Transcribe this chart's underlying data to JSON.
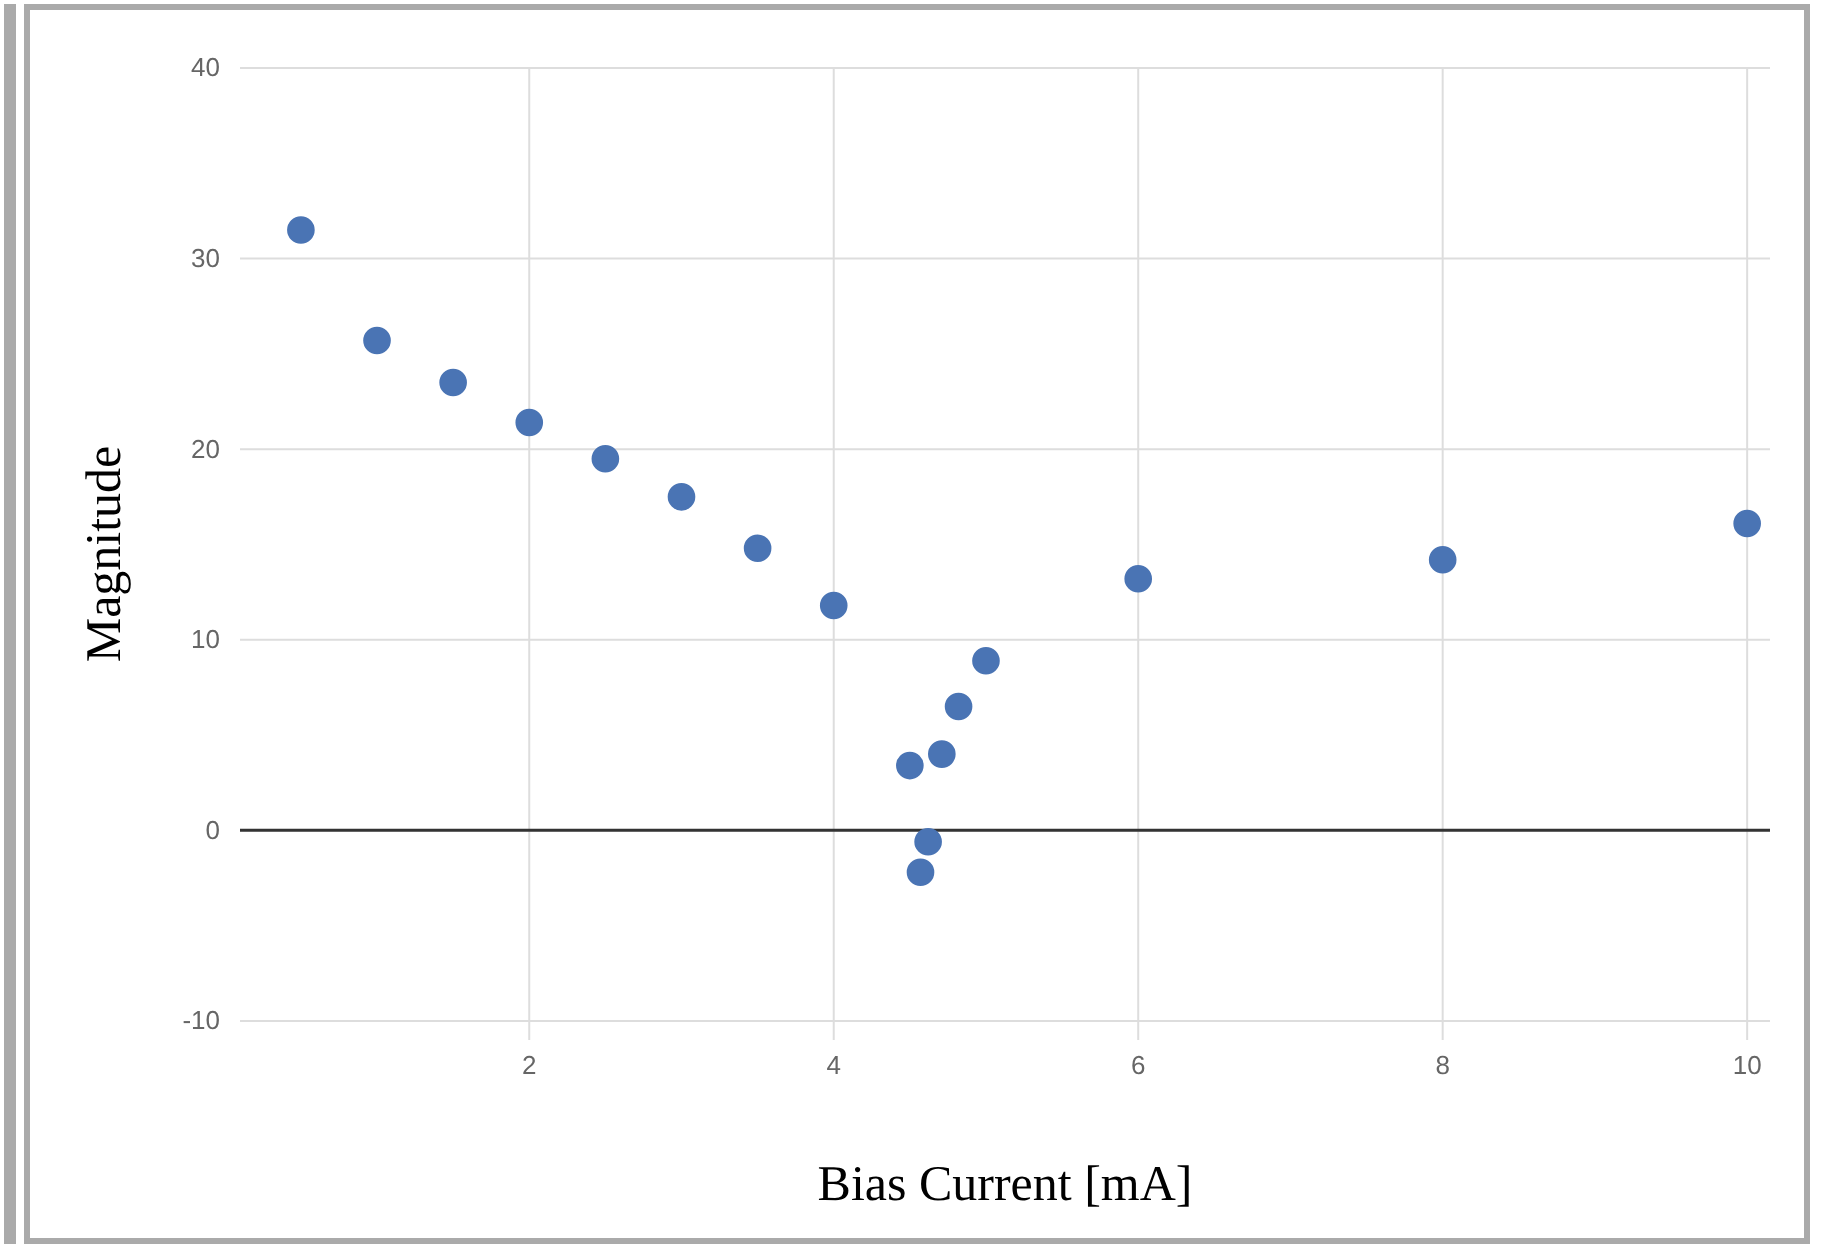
{
  "chart_data": {
    "type": "scatter",
    "xlabel": "Bias Current [mA]",
    "ylabel": "Magnitude",
    "x": [
      0.5,
      1,
      1.5,
      2,
      2.5,
      3,
      3.5,
      4,
      4.5,
      4.57,
      4.62,
      4.71,
      4.82,
      5,
      6,
      8,
      10
    ],
    "series": [
      {
        "color": "#4a74b4",
        "values": [
          31.5,
          25.7,
          23.5,
          21.4,
          19.5,
          17.5,
          14.8,
          11.8,
          3.4,
          -2.2,
          -0.6,
          4.0,
          6.5,
          8.9,
          13.2,
          14.2,
          16.1
        ]
      }
    ],
    "xlim": [
      0.1,
      10.15
    ],
    "xticks": [
      2,
      4,
      6,
      8,
      10
    ],
    "ylim": [
      -11,
      40
    ],
    "yticks": [
      -10,
      0,
      10,
      20,
      30,
      40
    ],
    "grid": true,
    "marker": "circle",
    "ref_lines": [
      {
        "axis": "y",
        "value": 0,
        "color": "#333333"
      }
    ]
  }
}
